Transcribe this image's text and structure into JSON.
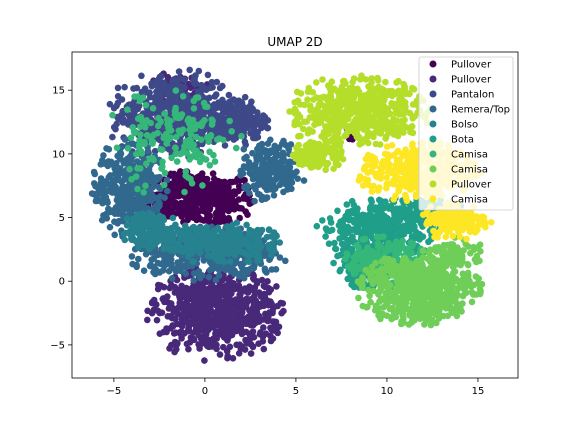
{
  "chart_data": {
    "type": "scatter",
    "title": "UMAP 2D",
    "xlabel": "",
    "ylabel": "",
    "xlim": [
      -7.3,
      17.2
    ],
    "ylim": [
      -7.6,
      18.0
    ],
    "xticks": [
      -5,
      0,
      5,
      10,
      15
    ],
    "yticks": [
      -5,
      0,
      5,
      10,
      15
    ],
    "grid": false,
    "legend_position": "top-right",
    "series": [
      {
        "name": "Pullover",
        "color": "#440154",
        "clusters": [
          {
            "cx": -0.6,
            "cy": 6.5,
            "rx": 3.4,
            "ry": 2.0,
            "n": 520
          },
          {
            "cx": 8.0,
            "cy": 11.6,
            "rx": 0.4,
            "ry": 0.8,
            "n": 6
          }
        ]
      },
      {
        "name": "Pullover",
        "color": "#482878",
        "clusters": [
          {
            "cx": 0.6,
            "cy": -2.4,
            "rx": 3.6,
            "ry": 3.6,
            "n": 700
          },
          {
            "cx": -1.4,
            "cy": 14.8,
            "rx": 1.6,
            "ry": 1.6,
            "n": 60
          }
        ]
      },
      {
        "name": "Pantalon",
        "color": "#3e4989",
        "clusters": [
          {
            "cx": -1.6,
            "cy": 13.0,
            "rx": 3.6,
            "ry": 3.4,
            "n": 520
          },
          {
            "cx": 1.8,
            "cy": 12.6,
            "rx": 1.6,
            "ry": 1.8,
            "n": 160
          }
        ]
      },
      {
        "name": "Remera/Top",
        "color": "#31688e",
        "clusters": [
          {
            "cx": -4.2,
            "cy": 7.2,
            "rx": 2.0,
            "ry": 3.6,
            "n": 360
          },
          {
            "cx": 0.2,
            "cy": 2.2,
            "rx": 4.2,
            "ry": 2.0,
            "n": 440
          },
          {
            "cx": 3.6,
            "cy": 8.6,
            "rx": 1.8,
            "ry": 2.4,
            "n": 220
          }
        ]
      },
      {
        "name": "Bolso",
        "color": "#26828e",
        "clusters": [
          {
            "cx": 0.8,
            "cy": 3.0,
            "rx": 3.2,
            "ry": 1.6,
            "n": 300
          },
          {
            "cx": -3.0,
            "cy": 4.0,
            "rx": 1.6,
            "ry": 1.4,
            "n": 140
          }
        ]
      },
      {
        "name": "Bota",
        "color": "#1f9e89",
        "clusters": [
          {
            "cx": 9.6,
            "cy": 4.2,
            "rx": 3.2,
            "ry": 2.2,
            "n": 360
          },
          {
            "cx": 8.8,
            "cy": 1.2,
            "rx": 1.6,
            "ry": 1.8,
            "n": 180
          },
          {
            "cx": 12.4,
            "cy": 5.6,
            "rx": 1.8,
            "ry": 1.0,
            "n": 120
          }
        ]
      },
      {
        "name": "Camisa",
        "color": "#35b779",
        "clusters": [
          {
            "cx": 10.0,
            "cy": 1.4,
            "rx": 2.4,
            "ry": 2.0,
            "n": 220
          },
          {
            "cx": -1.8,
            "cy": 11.0,
            "rx": 3.6,
            "ry": 4.0,
            "n": 170
          }
        ]
      },
      {
        "name": "Camisa",
        "color": "#6ece58",
        "clusters": [
          {
            "cx": 11.8,
            "cy": -0.6,
            "rx": 3.2,
            "ry": 2.8,
            "n": 620
          },
          {
            "cx": 13.8,
            "cy": 2.2,
            "rx": 1.4,
            "ry": 1.2,
            "n": 90
          }
        ]
      },
      {
        "name": "Pullover",
        "color": "#b5de2b",
        "clusters": [
          {
            "cx": 8.4,
            "cy": 13.4,
            "rx": 3.8,
            "ry": 2.6,
            "n": 520
          },
          {
            "cx": 6.2,
            "cy": 10.2,
            "rx": 1.4,
            "ry": 1.6,
            "n": 120
          }
        ]
      },
      {
        "name": "Camisa",
        "color": "#fde725",
        "clusters": [
          {
            "cx": 11.8,
            "cy": 8.6,
            "rx": 3.2,
            "ry": 2.2,
            "n": 420
          },
          {
            "cx": 13.8,
            "cy": 4.8,
            "rx": 1.8,
            "ry": 1.6,
            "n": 180
          }
        ]
      }
    ]
  }
}
